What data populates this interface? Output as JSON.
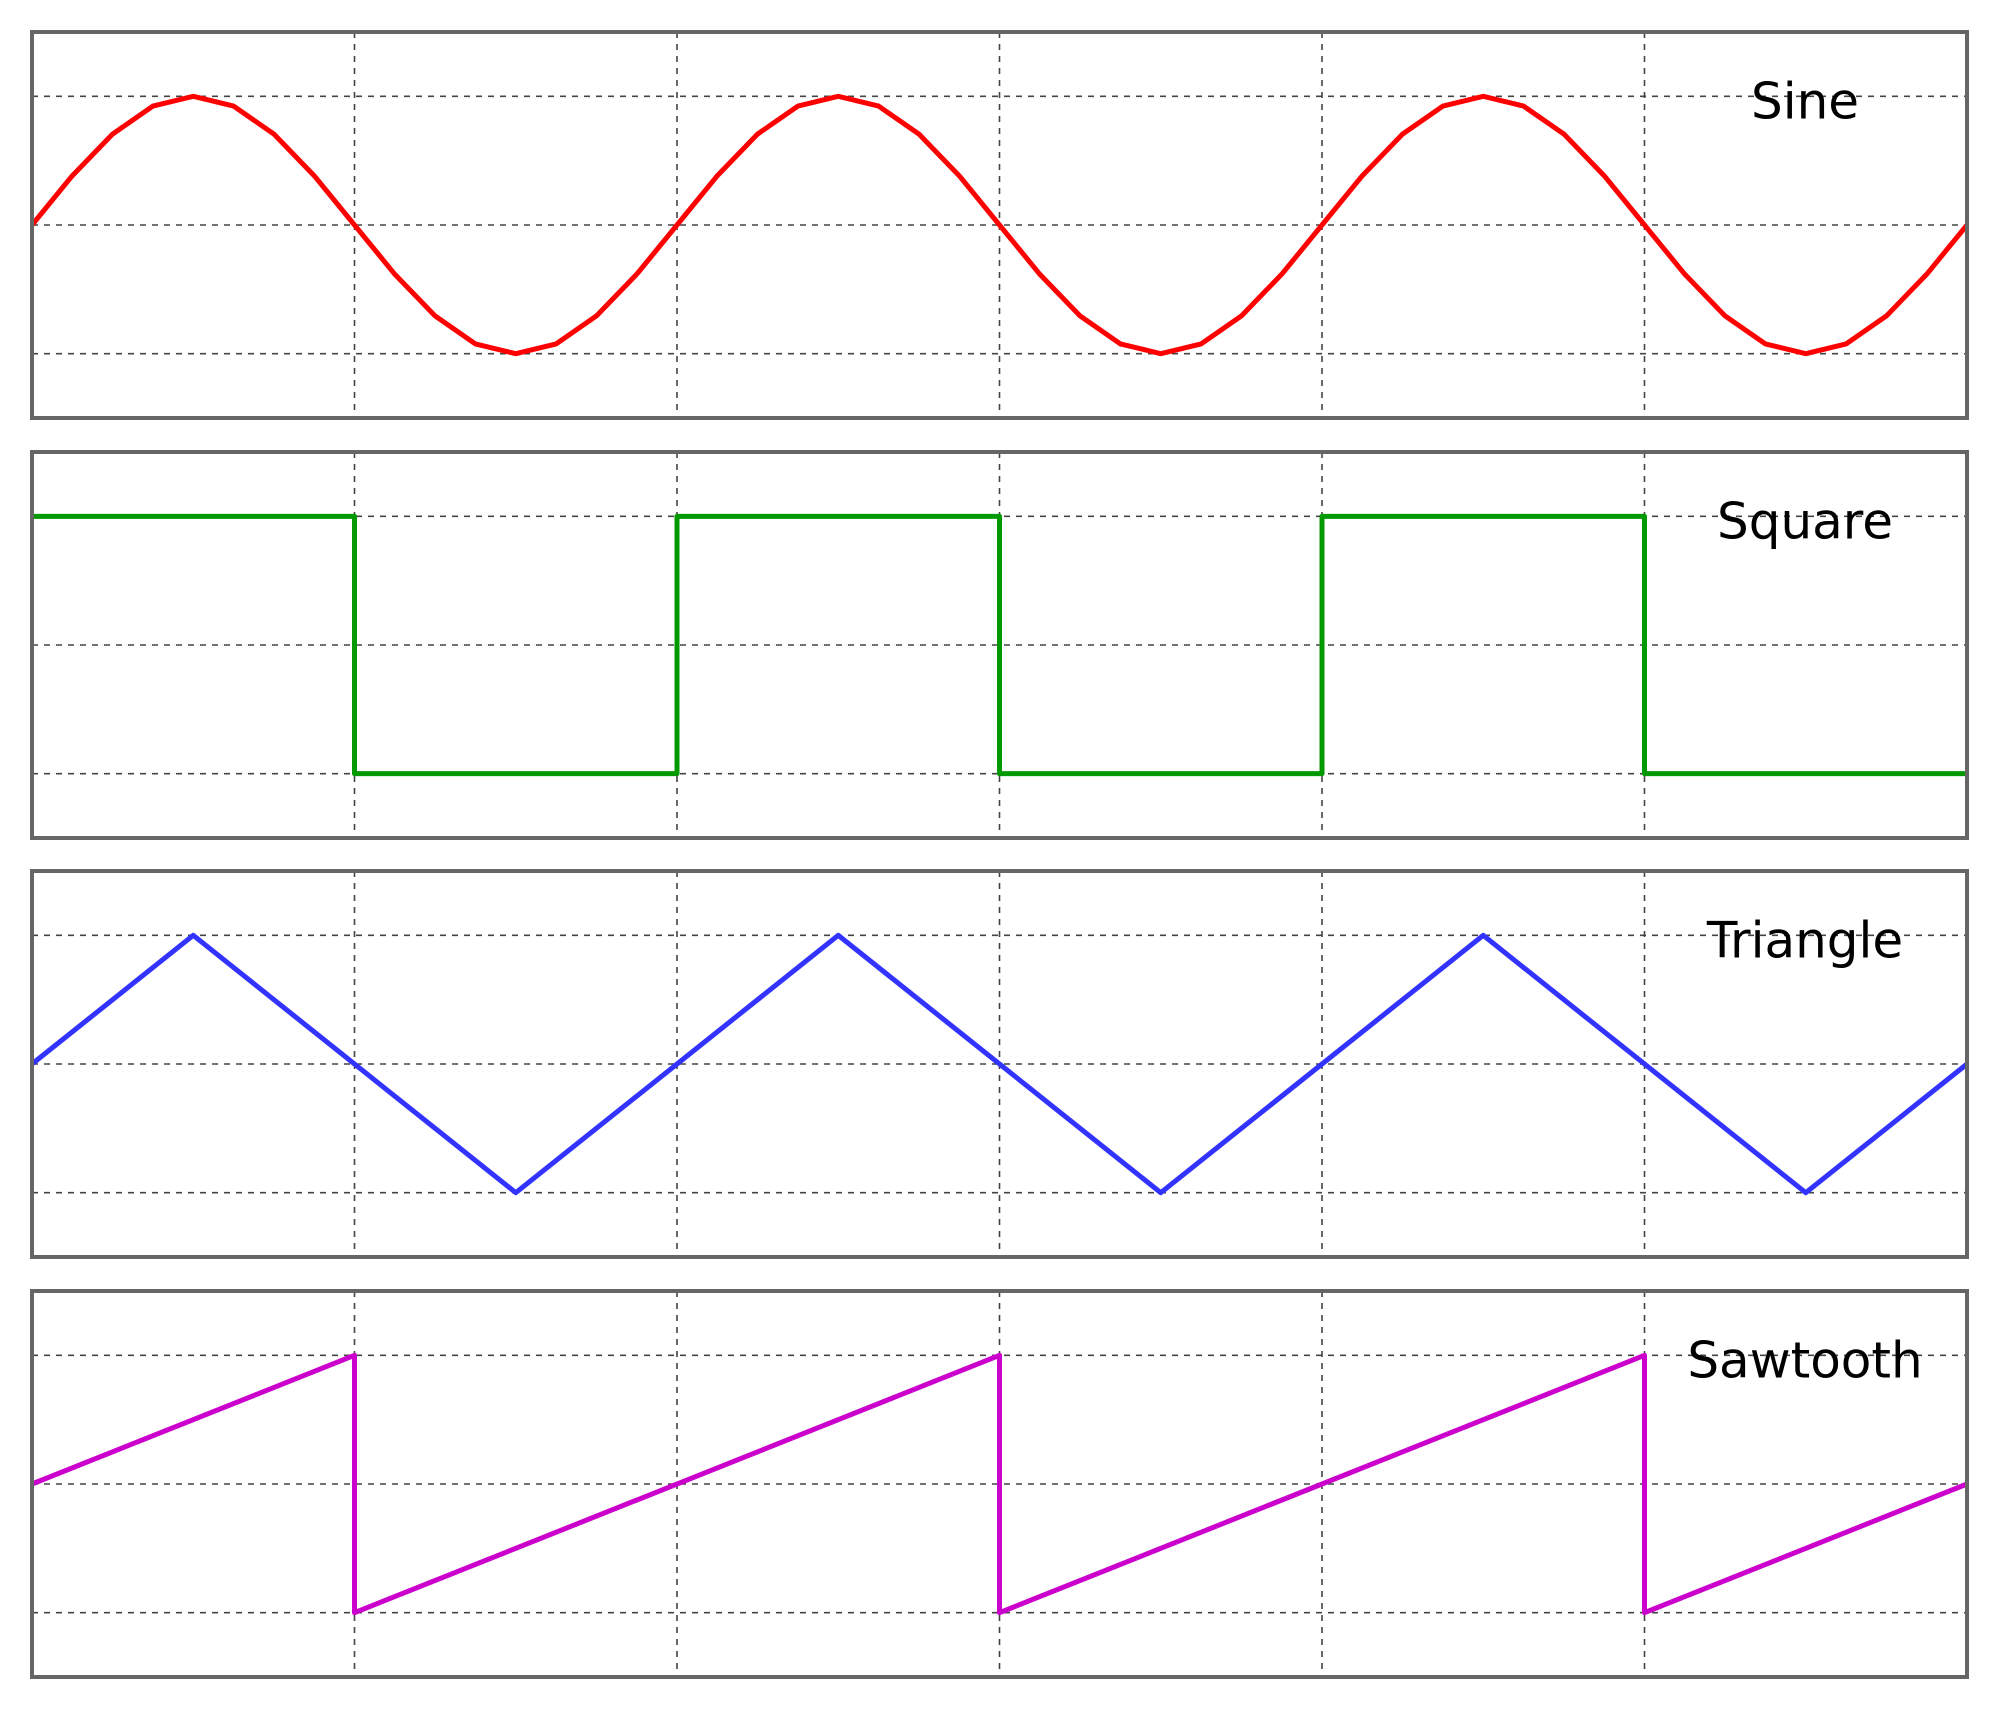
{
  "chart_data": [
    {
      "type": "line",
      "title": "Sine",
      "color": "#ff0000",
      "xlim": [
        0,
        6
      ],
      "ylim": [
        -1.5,
        1.5
      ],
      "xticks": [
        1,
        2,
        3,
        4,
        5
      ],
      "yticks": [
        -1,
        0,
        1
      ],
      "grid": true,
      "x": [
        0,
        0.125,
        0.25,
        0.375,
        0.5,
        0.625,
        0.75,
        0.875,
        1,
        1.125,
        1.25,
        1.375,
        1.5,
        1.625,
        1.75,
        1.875,
        2,
        2.125,
        2.25,
        2.375,
        2.5,
        2.625,
        2.75,
        2.875,
        3,
        3.125,
        3.25,
        3.375,
        3.5,
        3.625,
        3.75,
        3.875,
        4,
        4.125,
        4.25,
        4.375,
        4.5,
        4.625,
        4.75,
        4.875,
        5,
        5.125,
        5.25,
        5.375,
        5.5,
        5.625,
        5.75,
        5.875,
        6
      ],
      "values": [
        0,
        0.383,
        0.707,
        0.924,
        1,
        0.924,
        0.707,
        0.383,
        0,
        -0.383,
        -0.707,
        -0.924,
        -1,
        -0.924,
        -0.707,
        -0.383,
        0,
        0.383,
        0.707,
        0.924,
        1,
        0.924,
        0.707,
        0.383,
        0,
        -0.383,
        -0.707,
        -0.924,
        -1,
        -0.924,
        -0.707,
        -0.383,
        0,
        0.383,
        0.707,
        0.924,
        1,
        0.924,
        0.707,
        0.383,
        0,
        -0.383,
        -0.707,
        -0.924,
        -1,
        -0.924,
        -0.707,
        -0.383,
        0
      ]
    },
    {
      "type": "line",
      "title": "Square",
      "color": "#009900",
      "xlim": [
        0,
        6
      ],
      "ylim": [
        -1.5,
        1.5
      ],
      "xticks": [
        1,
        2,
        3,
        4,
        5
      ],
      "yticks": [
        -1,
        0,
        1
      ],
      "grid": true,
      "x": [
        0,
        1,
        1,
        2,
        2,
        3,
        3,
        4,
        4,
        5,
        5,
        6
      ],
      "values": [
        1,
        1,
        -1,
        -1,
        1,
        1,
        -1,
        -1,
        1,
        1,
        -1,
        -1
      ]
    },
    {
      "type": "line",
      "title": "Triangle",
      "color": "#3333ff",
      "xlim": [
        0,
        6
      ],
      "ylim": [
        -1.5,
        1.5
      ],
      "xticks": [
        1,
        2,
        3,
        4,
        5
      ],
      "yticks": [
        -1,
        0,
        1
      ],
      "grid": true,
      "x": [
        0,
        0.5,
        1.5,
        2.5,
        3.5,
        4.5,
        5.5,
        6
      ],
      "values": [
        0,
        1,
        -1,
        1,
        -1,
        1,
        -1,
        0
      ]
    },
    {
      "type": "line",
      "title": "Sawtooth",
      "color": "#cc00cc",
      "xlim": [
        0,
        6
      ],
      "ylim": [
        -1.5,
        1.5
      ],
      "xticks": [
        1,
        2,
        3,
        4,
        5
      ],
      "yticks": [
        -1,
        0,
        1
      ],
      "grid": true,
      "x": [
        0,
        1,
        1,
        3,
        3,
        5,
        5,
        6
      ],
      "values": [
        0,
        1,
        -1,
        1,
        -1,
        1,
        -1,
        0
      ]
    }
  ]
}
